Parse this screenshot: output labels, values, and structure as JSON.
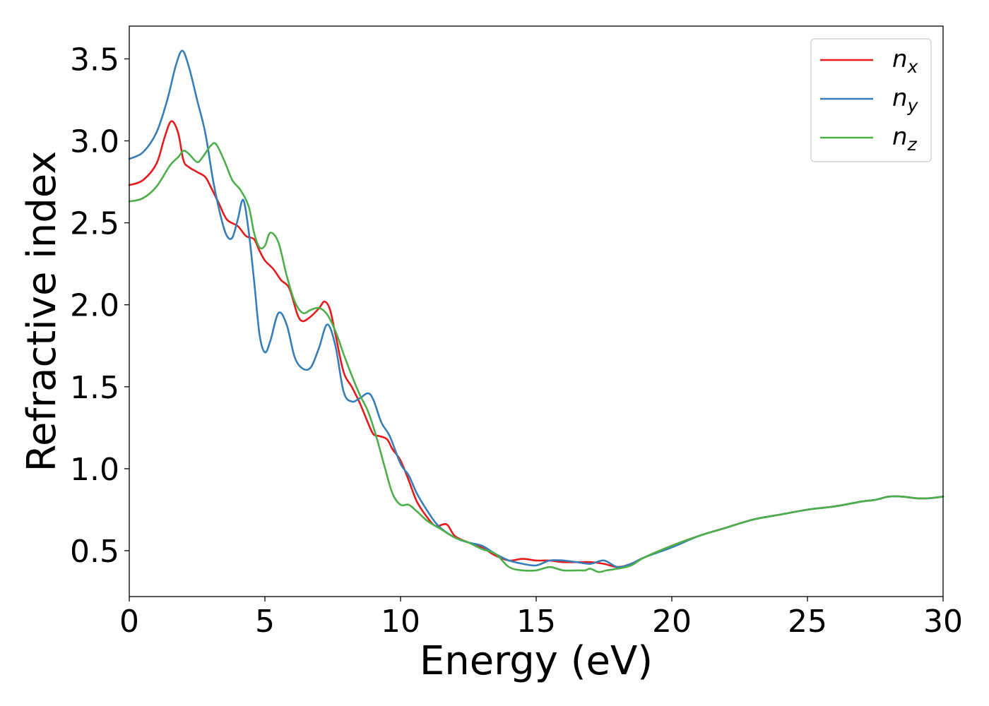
{
  "chart_data": {
    "type": "line",
    "title": "",
    "xlabel": "Energy (eV)",
    "ylabel": "Refractive index",
    "xlim": [
      0,
      30
    ],
    "ylim": [
      0.22,
      3.7
    ],
    "xticks": [
      0,
      5,
      10,
      15,
      20,
      25,
      30
    ],
    "yticks": [
      0.5,
      1.0,
      1.5,
      2.0,
      2.5,
      3.0,
      3.5
    ],
    "xtick_labels": [
      "0",
      "5",
      "10",
      "15",
      "20",
      "25",
      "30"
    ],
    "ytick_labels": [
      "0.5",
      "1.0",
      "1.5",
      "2.0",
      "2.5",
      "3.0",
      "3.5"
    ],
    "grid": false,
    "legend_position": "top-right",
    "series": [
      {
        "name": "n_x",
        "legend_base": "n",
        "legend_sub": "x",
        "color": "#e41a1c",
        "x": [
          0,
          0.5,
          1.0,
          1.3,
          1.55,
          1.8,
          2.0,
          2.2,
          2.5,
          2.8,
          3.0,
          3.3,
          3.6,
          4.0,
          4.3,
          4.6,
          4.8,
          5.0,
          5.3,
          5.6,
          5.9,
          6.2,
          6.4,
          6.7,
          7.0,
          7.2,
          7.4,
          7.6,
          7.9,
          8.2,
          8.5,
          8.8,
          9.0,
          9.2,
          9.5,
          9.7,
          10.0,
          10.3,
          10.6,
          11.0,
          11.3,
          11.7,
          12.0,
          12.5,
          13.0,
          13.5,
          14.0,
          14.5,
          15.0,
          15.5,
          16.0,
          16.5,
          17.0,
          17.5,
          18.0,
          18.5,
          19.0,
          20.0,
          21.0,
          22.0,
          23.0,
          24.0,
          25.0,
          26.0,
          27.0,
          27.5,
          28.0,
          28.5,
          29.0,
          29.5,
          30.0
        ],
        "y": [
          2.73,
          2.76,
          2.86,
          3.02,
          3.12,
          3.05,
          2.88,
          2.84,
          2.81,
          2.78,
          2.72,
          2.62,
          2.52,
          2.48,
          2.42,
          2.4,
          2.33,
          2.27,
          2.22,
          2.15,
          2.1,
          1.94,
          1.9,
          1.93,
          1.98,
          2.02,
          1.97,
          1.82,
          1.59,
          1.5,
          1.4,
          1.28,
          1.21,
          1.2,
          1.18,
          1.12,
          1.05,
          0.93,
          0.8,
          0.7,
          0.65,
          0.66,
          0.59,
          0.55,
          0.52,
          0.47,
          0.44,
          0.45,
          0.44,
          0.44,
          0.43,
          0.43,
          0.43,
          0.42,
          0.4,
          0.42,
          0.46,
          0.53,
          0.59,
          0.64,
          0.69,
          0.72,
          0.75,
          0.77,
          0.8,
          0.81,
          0.83,
          0.83,
          0.82,
          0.82,
          0.83
        ]
      },
      {
        "name": "n_y",
        "legend_base": "n",
        "legend_sub": "y",
        "color": "#377eb8",
        "x": [
          0,
          0.5,
          1.0,
          1.4,
          1.7,
          1.95,
          2.2,
          2.5,
          2.8,
          3.1,
          3.4,
          3.6,
          3.8,
          4.0,
          4.2,
          4.4,
          4.6,
          4.8,
          5.0,
          5.2,
          5.5,
          5.8,
          6.1,
          6.4,
          6.7,
          7.0,
          7.3,
          7.6,
          7.9,
          8.2,
          8.5,
          8.8,
          9.0,
          9.3,
          9.6,
          10.0,
          10.3,
          10.6,
          11.0,
          11.4,
          12.0,
          12.5,
          13.0,
          13.5,
          14.0,
          14.5,
          15.0,
          15.5,
          16.0,
          16.5,
          17.0,
          17.5,
          18.0,
          18.5,
          19.0,
          20.0,
          21.0,
          22.0,
          23.0,
          24.0,
          25.0,
          26.0,
          27.0,
          27.5,
          28.0,
          28.5,
          29.0,
          29.5,
          30.0
        ],
        "y": [
          2.89,
          2.93,
          3.05,
          3.25,
          3.45,
          3.55,
          3.45,
          3.25,
          3.05,
          2.75,
          2.52,
          2.42,
          2.41,
          2.52,
          2.64,
          2.45,
          2.15,
          1.82,
          1.71,
          1.78,
          1.95,
          1.88,
          1.68,
          1.61,
          1.62,
          1.74,
          1.88,
          1.75,
          1.47,
          1.41,
          1.43,
          1.46,
          1.42,
          1.28,
          1.2,
          1.03,
          0.96,
          0.85,
          0.74,
          0.65,
          0.58,
          0.55,
          0.53,
          0.48,
          0.44,
          0.42,
          0.41,
          0.44,
          0.44,
          0.43,
          0.42,
          0.44,
          0.4,
          0.42,
          0.46,
          0.52,
          0.59,
          0.64,
          0.69,
          0.72,
          0.75,
          0.77,
          0.8,
          0.81,
          0.83,
          0.83,
          0.82,
          0.82,
          0.83
        ]
      },
      {
        "name": "n_z",
        "legend_base": "n",
        "legend_sub": "z",
        "color": "#4daf4a",
        "x": [
          0,
          0.5,
          1.0,
          1.5,
          1.8,
          2.0,
          2.2,
          2.5,
          2.7,
          3.0,
          3.2,
          3.5,
          3.8,
          4.1,
          4.4,
          4.6,
          4.8,
          5.0,
          5.2,
          5.5,
          5.8,
          6.1,
          6.4,
          6.7,
          7.0,
          7.3,
          7.6,
          7.9,
          8.2,
          8.5,
          8.8,
          9.1,
          9.4,
          9.7,
          10.0,
          10.3,
          10.6,
          11.0,
          11.5,
          12.0,
          12.5,
          13.0,
          13.5,
          14.0,
          14.5,
          15.0,
          15.5,
          16.0,
          16.5,
          16.8,
          17.0,
          17.3,
          17.6,
          18.0,
          18.5,
          19.0,
          20.0,
          21.0,
          22.0,
          23.0,
          24.0,
          25.0,
          26.0,
          27.0,
          27.5,
          28.0,
          28.5,
          29.0,
          29.5,
          30.0
        ],
        "y": [
          2.63,
          2.65,
          2.72,
          2.85,
          2.9,
          2.94,
          2.92,
          2.87,
          2.9,
          2.97,
          2.98,
          2.88,
          2.76,
          2.7,
          2.6,
          2.44,
          2.35,
          2.36,
          2.44,
          2.38,
          2.18,
          2.02,
          1.95,
          1.97,
          1.98,
          1.94,
          1.84,
          1.7,
          1.57,
          1.45,
          1.35,
          1.2,
          1.02,
          0.85,
          0.78,
          0.78,
          0.74,
          0.68,
          0.63,
          0.58,
          0.55,
          0.51,
          0.48,
          0.4,
          0.38,
          0.38,
          0.4,
          0.38,
          0.38,
          0.38,
          0.39,
          0.37,
          0.38,
          0.39,
          0.41,
          0.46,
          0.53,
          0.59,
          0.64,
          0.69,
          0.72,
          0.75,
          0.77,
          0.8,
          0.81,
          0.83,
          0.83,
          0.82,
          0.82,
          0.83
        ]
      }
    ]
  }
}
